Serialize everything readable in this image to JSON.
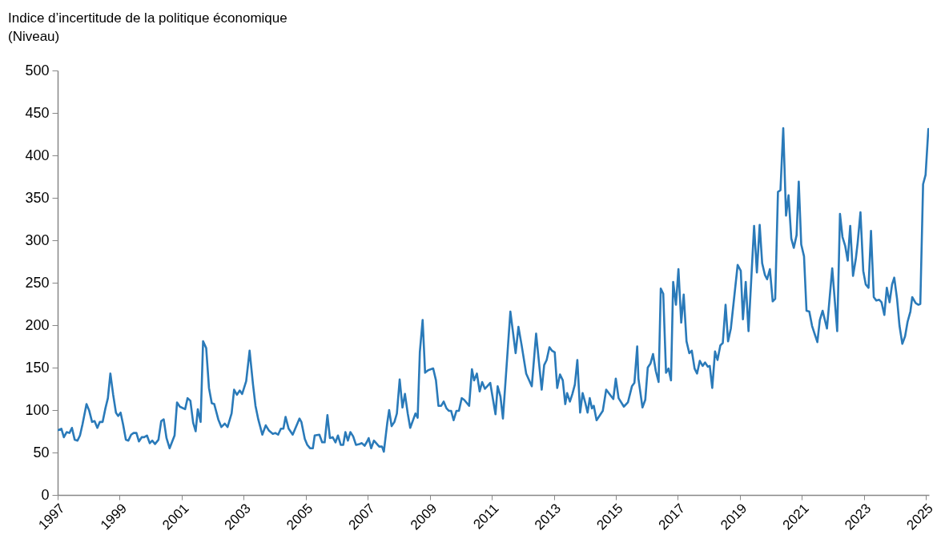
{
  "chart_data": {
    "type": "line",
    "title": "Indice d’incertitude de la politique économique",
    "subtitle": "(Niveau)",
    "xlim": [
      1997,
      2025.1
    ],
    "xticks": [
      1997,
      1999,
      2001,
      2003,
      2005,
      2007,
      2009,
      2011,
      2013,
      2015,
      2017,
      2019,
      2021,
      2023,
      2025
    ],
    "ylim": [
      0,
      500
    ],
    "yticks": [
      0,
      50,
      100,
      150,
      200,
      250,
      300,
      350,
      400,
      450,
      500
    ],
    "line_style": "solid",
    "series": [
      {
        "color": "#2a7ab9",
        "x": [
          1997.0,
          1997.12,
          1997.2,
          1997.29,
          1997.38,
          1997.46,
          1997.55,
          1997.64,
          1997.72,
          1997.8,
          1997.93,
          1998.02,
          1998.11,
          1998.19,
          1998.28,
          1998.36,
          1998.45,
          1998.54,
          1998.62,
          1998.7,
          1998.79,
          1998.88,
          1998.95,
          1999.03,
          1999.11,
          1999.2,
          1999.28,
          1999.37,
          1999.45,
          1999.54,
          1999.62,
          1999.71,
          1999.79,
          1999.88,
          1999.97,
          2000.05,
          2000.14,
          2000.25,
          2000.34,
          2000.42,
          2000.51,
          2000.61,
          2000.77,
          2000.85,
          2000.94,
          2001.11,
          2001.19,
          2001.28,
          2001.37,
          2001.45,
          2001.52,
          2001.61,
          2001.69,
          2001.79,
          2001.88,
          2001.97,
          2002.05,
          2002.18,
          2002.28,
          2002.39,
          2002.48,
          2002.61,
          2002.69,
          2002.78,
          2002.87,
          2002.95,
          2003.08,
          2003.19,
          2003.3,
          2003.38,
          2003.47,
          2003.6,
          2003.71,
          2003.81,
          2003.94,
          2004.02,
          2004.11,
          2004.2,
          2004.28,
          2004.35,
          2004.45,
          2004.58,
          2004.8,
          2004.86,
          2004.97,
          2005.05,
          2005.14,
          2005.23,
          2005.29,
          2005.44,
          2005.53,
          2005.61,
          2005.7,
          2005.78,
          2005.87,
          2005.96,
          2006.04,
          2006.13,
          2006.21,
          2006.28,
          2006.36,
          2006.44,
          2006.53,
          2006.62,
          2006.73,
          2006.81,
          2006.9,
          2006.98,
          2007.03,
          2007.11,
          2007.2,
          2007.37,
          2007.46,
          2007.52,
          2007.63,
          2007.69,
          2007.77,
          2007.86,
          2007.94,
          2008.03,
          2008.12,
          2008.2,
          2008.29,
          2008.37,
          2008.48,
          2008.54,
          2008.61,
          2008.68,
          2008.77,
          2008.85,
          2008.95,
          2009.11,
          2009.2,
          2009.28,
          2009.37,
          2009.45,
          2009.54,
          2009.62,
          2009.69,
          2009.77,
          2009.86,
          2009.94,
          2010.03,
          2010.11,
          2010.27,
          2010.36,
          2010.43,
          2010.52,
          2010.61,
          2010.69,
          2010.78,
          2010.95,
          2011.12,
          2011.19,
          2011.28,
          2011.36,
          2011.6,
          2011.77,
          2011.86,
          2011.96,
          2012.11,
          2012.29,
          2012.43,
          2012.61,
          2012.69,
          2012.77,
          2012.86,
          2012.94,
          2013.03,
          2013.11,
          2013.2,
          2013.29,
          2013.37,
          2013.43,
          2013.52,
          2013.6,
          2013.68,
          2013.76,
          2013.85,
          2013.93,
          2014.02,
          2014.09,
          2014.16,
          2014.23,
          2014.29,
          2014.38,
          2014.58,
          2014.69,
          2014.92,
          2015.0,
          2015.09,
          2015.26,
          2015.39,
          2015.52,
          2015.6,
          2015.69,
          2015.73,
          2015.86,
          2015.95,
          2016.03,
          2016.12,
          2016.2,
          2016.29,
          2016.38,
          2016.45,
          2016.53,
          2016.62,
          2016.7,
          2016.78,
          2016.85,
          2016.94,
          2017.02,
          2017.11,
          2017.19,
          2017.28,
          2017.37,
          2017.45,
          2017.54,
          2017.62,
          2017.71,
          2017.8,
          2017.88,
          2017.97,
          2018.03,
          2018.11,
          2018.2,
          2018.28,
          2018.37,
          2018.45,
          2018.54,
          2018.62,
          2018.71,
          2018.93,
          2019.03,
          2019.1,
          2019.19,
          2019.28,
          2019.46,
          2019.55,
          2019.64,
          2019.72,
          2019.81,
          2019.88,
          2019.97,
          2020.06,
          2020.14,
          2020.23,
          2020.31,
          2020.4,
          2020.49,
          2020.57,
          2020.66,
          2020.74,
          2020.83,
          2020.9,
          2020.98,
          2021.07,
          2021.15,
          2021.24,
          2021.33,
          2021.5,
          2021.58,
          2021.67,
          2021.81,
          2021.98,
          2022.14,
          2022.23,
          2022.31,
          2022.4,
          2022.48,
          2022.56,
          2022.65,
          2022.74,
          2022.8,
          2022.89,
          2022.98,
          2023.06,
          2023.15,
          2023.23,
          2023.32,
          2023.4,
          2023.49,
          2023.57,
          2023.66,
          2023.74,
          2023.83,
          2023.91,
          2023.98,
          2024.07,
          2024.15,
          2024.24,
          2024.33,
          2024.41,
          2024.5,
          2024.56,
          2024.67,
          2024.76,
          2024.82,
          2024.91,
          2024.99,
          2025.08
        ],
        "values": [
          76,
          78,
          68,
          74,
          73,
          79,
          65,
          64,
          70,
          83,
          107,
          99,
          86,
          87,
          79,
          86,
          86,
          102,
          114,
          143,
          118,
          97,
          93,
          97,
          83,
          65,
          64,
          71,
          73,
          73,
          63,
          68,
          68,
          70,
          61,
          64,
          60,
          65,
          87,
          89,
          67,
          55,
          70,
          109,
          104,
          101,
          114,
          111,
          85,
          75,
          101,
          86,
          181,
          173,
          126,
          108,
          107,
          89,
          80,
          84,
          80,
          96,
          124,
          118,
          123,
          119,
          134,
          170,
          130,
          105,
          89,
          71,
          82,
          76,
          72,
          73,
          71,
          78,
          78,
          92,
          78,
          71,
          90,
          86,
          66,
          59,
          55,
          55,
          70,
          71,
          62,
          62,
          94,
          67,
          68,
          62,
          70,
          59,
          59,
          74,
          64,
          74,
          69,
          59,
          60,
          61,
          58,
          63,
          67,
          55,
          64,
          57,
          57,
          51,
          85,
          100,
          81,
          86,
          96,
          136,
          103,
          119,
          96,
          79,
          90,
          96,
          91,
          168,
          206,
          144,
          147,
          149,
          135,
          105,
          105,
          110,
          102,
          99,
          99,
          88,
          99,
          99,
          114,
          112,
          105,
          148,
          135,
          143,
          122,
          133,
          125,
          132,
          95,
          128,
          116,
          90,
          216,
          167,
          198,
          177,
          143,
          128,
          190,
          124,
          153,
          159,
          174,
          170,
          168,
          126,
          142,
          135,
          107,
          120,
          110,
          119,
          130,
          159,
          97,
          120,
          108,
          97,
          114,
          102,
          105,
          88,
          99,
          124,
          113,
          137,
          114,
          104,
          109,
          128,
          132,
          175,
          137,
          103,
          112,
          150,
          155,
          166,
          146,
          133,
          243,
          237,
          144,
          149,
          135,
          251,
          224,
          266,
          203,
          236,
          181,
          167,
          170,
          149,
          143,
          158,
          152,
          156,
          151,
          152,
          126,
          169,
          159,
          176,
          179,
          224,
          181,
          196,
          271,
          264,
          207,
          251,
          193,
          317,
          262,
          318,
          273,
          259,
          254,
          266,
          228,
          231,
          357,
          359,
          432,
          329,
          353,
          302,
          291,
          306,
          369,
          295,
          281,
          217,
          216,
          199,
          180,
          206,
          217,
          196,
          267,
          193,
          331,
          304,
          293,
          276,
          317,
          258,
          278,
          297,
          333,
          264,
          248,
          244,
          311,
          233,
          229,
          230,
          227,
          212,
          244,
          227,
          248,
          256,
          231,
          199,
          178,
          187,
          204,
          216,
          233,
          226,
          224,
          225,
          366,
          377,
          431
        ]
      }
    ]
  }
}
